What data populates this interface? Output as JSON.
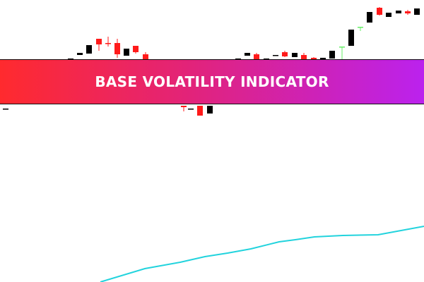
{
  "banner": {
    "title": "BASE VOLATILITY INDICATOR",
    "gradient_start": "#ff2a2e",
    "gradient_end": "#bb22ee"
  },
  "chart_data": {
    "type": "candlestick",
    "grid": false,
    "axes_visible": false,
    "colors": {
      "black": "#000000",
      "red": "#ff1a1a",
      "green": "#66ee66",
      "indicator": "#22d3dd"
    },
    "candles": [
      {
        "o": 2.46,
        "c": 2.46,
        "h": 2.46,
        "l": 2.46,
        "color": "black"
      },
      {
        "o": 3.0,
        "c": 3.17,
        "h": 3.17,
        "l": 3.0,
        "color": "black"
      },
      {
        "o": 3.22,
        "c": 3.25,
        "h": 3.25,
        "l": 3.22,
        "color": "black"
      },
      {
        "o": 3.24,
        "c": 3.36,
        "h": 3.36,
        "l": 3.24,
        "color": "black"
      },
      {
        "o": 3.45,
        "c": 3.37,
        "h": 3.45,
        "l": 3.28,
        "color": "red"
      },
      {
        "o": 3.39,
        "c": 3.38,
        "h": 3.48,
        "l": 3.34,
        "color": "red"
      },
      {
        "o": 3.39,
        "c": 3.23,
        "h": 3.45,
        "l": 3.18,
        "color": "red"
      },
      {
        "o": 3.21,
        "c": 3.31,
        "h": 3.31,
        "l": 3.21,
        "color": "black"
      },
      {
        "o": 3.35,
        "c": 3.26,
        "h": 3.35,
        "l": 3.24,
        "color": "red"
      },
      {
        "o": 3.23,
        "c": 3.07,
        "h": 3.26,
        "l": 3.05,
        "color": "red"
      },
      {
        "o": 3.05,
        "c": 3.02,
        "h": 3.07,
        "l": 2.98,
        "color": "red"
      },
      {
        "o": 2.5,
        "c": 2.48,
        "h": 2.5,
        "l": 2.42,
        "color": "red"
      },
      {
        "o": 2.46,
        "c": 2.46,
        "h": 2.46,
        "l": 2.46,
        "color": "black"
      },
      {
        "o": 2.5,
        "c": 2.36,
        "h": 2.5,
        "l": 2.36,
        "color": "red"
      },
      {
        "o": 2.39,
        "c": 2.5,
        "h": 2.5,
        "l": 2.39,
        "color": "black"
      },
      {
        "o": 3.0,
        "c": 3.17,
        "h": 3.17,
        "l": 3.0,
        "color": "black"
      },
      {
        "o": 3.21,
        "c": 3.25,
        "h": 3.25,
        "l": 3.21,
        "color": "black"
      },
      {
        "o": 3.23,
        "c": 3.05,
        "h": 3.25,
        "l": 3.04,
        "color": "red"
      },
      {
        "o": 3.08,
        "c": 3.17,
        "h": 3.17,
        "l": 3.08,
        "color": "black"
      },
      {
        "o": 3.22,
        "c": 3.22,
        "h": 3.22,
        "l": 3.22,
        "color": "black"
      },
      {
        "o": 3.26,
        "c": 3.2,
        "h": 3.28,
        "l": 3.19,
        "color": "red"
      },
      {
        "o": 3.19,
        "c": 3.25,
        "h": 3.25,
        "l": 3.19,
        "color": "black"
      },
      {
        "o": 3.22,
        "c": 3.13,
        "h": 3.25,
        "l": 3.08,
        "color": "red"
      },
      {
        "o": 3.18,
        "c": 3.1,
        "h": 3.19,
        "l": 3.07,
        "color": "red"
      },
      {
        "o": 3.14,
        "c": 3.18,
        "h": 3.18,
        "l": 3.14,
        "color": "black"
      },
      {
        "o": 3.17,
        "c": 3.28,
        "h": 3.28,
        "l": 3.17,
        "color": "black"
      },
      {
        "o": 3.34,
        "c": 3.34,
        "h": 3.34,
        "l": 3.12,
        "color": "green"
      },
      {
        "o": 3.35,
        "c": 3.58,
        "h": 3.58,
        "l": 3.35,
        "color": "black"
      },
      {
        "o": 3.62,
        "c": 3.62,
        "h": 3.62,
        "l": 3.56,
        "color": "green"
      },
      {
        "o": 3.68,
        "c": 3.83,
        "h": 3.83,
        "l": 3.68,
        "color": "black"
      },
      {
        "o": 3.89,
        "c": 3.79,
        "h": 3.9,
        "l": 3.78,
        "color": "red"
      },
      {
        "o": 3.76,
        "c": 3.82,
        "h": 3.82,
        "l": 3.76,
        "color": "black"
      },
      {
        "o": 3.81,
        "c": 3.85,
        "h": 3.85,
        "l": 3.81,
        "color": "black"
      },
      {
        "o": 3.84,
        "c": 3.81,
        "h": 3.86,
        "l": 3.79,
        "color": "red"
      },
      {
        "o": 3.79,
        "c": 3.88,
        "h": 3.88,
        "l": 3.79,
        "color": "black"
      }
    ],
    "indicator_line": [
      0.0,
      0.19,
      0.28,
      0.36,
      0.41,
      0.47,
      0.57,
      0.6,
      0.64,
      0.66,
      0.67,
      0.79
    ]
  }
}
